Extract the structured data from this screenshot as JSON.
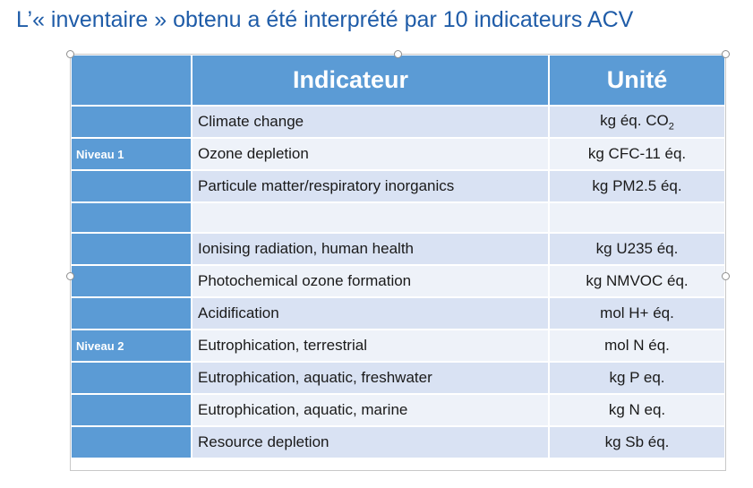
{
  "title": "L’« inventaire » obtenu a été interprété par 10 indicateurs ACV",
  "table": {
    "headers": {
      "indicateur": "Indicateur",
      "unite": "Unité"
    },
    "rows": [
      {
        "level": "",
        "indicator": "Climate change",
        "unit": "kg éq. CO",
        "unit_sub": "2"
      },
      {
        "level": "Niveau 1",
        "indicator": "Ozone depletion",
        "unit": "kg CFC-11 éq."
      },
      {
        "level": "",
        "indicator": "Particule matter/respiratory inorganics",
        "unit": "kg PM2.5 éq."
      },
      {
        "level": "",
        "indicator": "",
        "unit": ""
      },
      {
        "level": "",
        "indicator": "Ionising radiation, human health",
        "unit": "kg U235 éq."
      },
      {
        "level": "",
        "indicator": "Photochemical ozone formation",
        "unit": "kg NMVOC éq."
      },
      {
        "level": "",
        "indicator": "Acidification",
        "unit": "mol H+ éq."
      },
      {
        "level": "Niveau 2",
        "indicator": "Eutrophication, terrestrial",
        "unit": "mol N éq."
      },
      {
        "level": "",
        "indicator": "Eutrophication, aquatic, freshwater",
        "unit": "kg P eq."
      },
      {
        "level": "",
        "indicator": "Eutrophication, aquatic, marine",
        "unit": "kg N eq."
      },
      {
        "level": "",
        "indicator": "Resource depletion",
        "unit": "kg Sb éq."
      }
    ]
  },
  "colors": {
    "title": "#1f5ca8",
    "header": "#5b9bd5",
    "band_dark": "#d9e2f3",
    "band_light": "#eef2f9"
  }
}
